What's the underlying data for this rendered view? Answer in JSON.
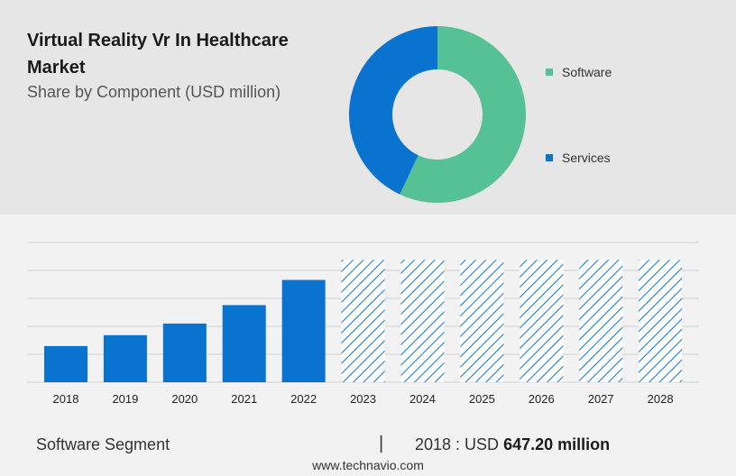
{
  "chart_data": [
    {
      "type": "pie",
      "title": "Virtual Reality Vr In Healthcare Market",
      "subtitle": "Share by Component (USD million)",
      "legend_position": "right",
      "series": [
        {
          "name": "Software",
          "value": 57,
          "color": "#56c194"
        },
        {
          "name": "Services",
          "value": 43,
          "color": "#0a73cf"
        }
      ]
    },
    {
      "type": "bar",
      "categories": [
        "2018",
        "2019",
        "2020",
        "2021",
        "2022",
        "2023",
        "2024",
        "2025",
        "2026",
        "2027",
        "2028"
      ],
      "values": [
        647.2,
        842,
        1050,
        1380,
        1830,
        2190,
        2190,
        2190,
        2190,
        2190,
        2190
      ],
      "forecast_from": "2023",
      "ylim": [
        0,
        2500
      ],
      "grid": true,
      "bar_color": "#0a73cf"
    }
  ],
  "footer": {
    "segment": "Software Segment",
    "separator": "|",
    "year_prefix": "2018 : USD",
    "value": "647.20 million"
  },
  "source": "www.technavio.com"
}
